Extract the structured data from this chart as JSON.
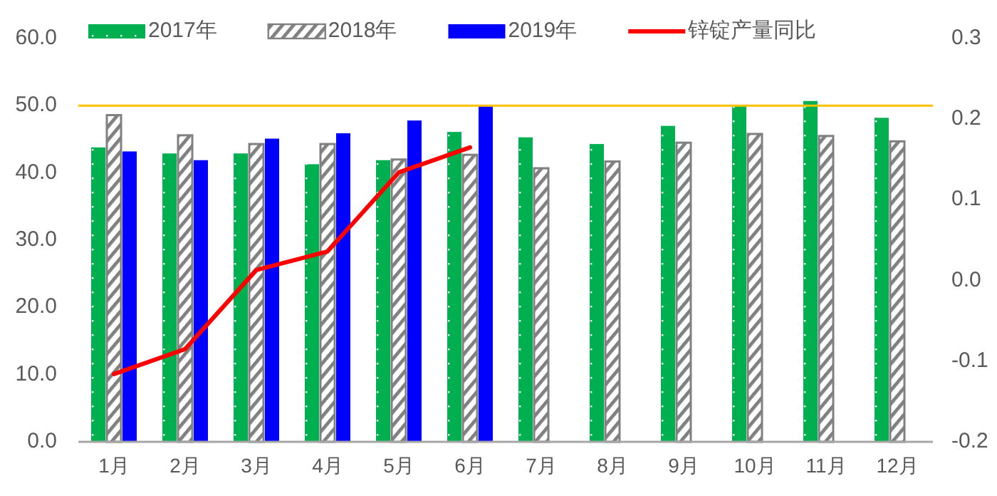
{
  "chart_data": {
    "type": "bar",
    "categories": [
      "1月",
      "2月",
      "3月",
      "4月",
      "5月",
      "6月",
      "7月",
      "8月",
      "9月",
      "10月",
      "11月",
      "12月"
    ],
    "series": [
      {
        "name": "2017年",
        "color": "#00b050",
        "values": [
          43.8,
          42.9,
          42.9,
          41.3,
          41.9,
          46.1,
          45.3,
          44.3,
          47.0,
          50.0,
          50.7,
          48.2
        ]
      },
      {
        "name": "2018年",
        "color": "#808080",
        "values": [
          48.6,
          45.6,
          44.3,
          44.3,
          42.0,
          42.7,
          40.7,
          41.7,
          44.5,
          45.8,
          45.5,
          44.7
        ]
      },
      {
        "name": "2019年",
        "color": "#0000ff",
        "values": [
          43.2,
          41.9,
          45.1,
          45.9,
          47.8,
          49.9,
          null,
          null,
          null,
          null,
          null,
          null
        ]
      },
      {
        "name": "锌锭产量同比",
        "type": "line",
        "axis": "y2",
        "color": "#ff0000",
        "values": [
          -0.116,
          -0.085,
          0.013,
          0.036,
          0.134,
          0.165,
          null,
          null,
          null,
          null,
          null,
          null
        ]
      }
    ],
    "ylim": [
      0,
      60
    ],
    "yticks": [
      {
        "value": 0,
        "label": "0.0"
      },
      {
        "value": 10,
        "label": "10.0"
      },
      {
        "value": 20,
        "label": "20.0"
      },
      {
        "value": 30,
        "label": "30.0"
      },
      {
        "value": 40,
        "label": "40.0"
      },
      {
        "value": 50,
        "label": "50.0"
      },
      {
        "value": 60,
        "label": "60.0"
      }
    ],
    "y2lim": [
      -0.2,
      0.3
    ],
    "y2ticks": [
      -0.2,
      -0.1,
      {
        "value": 0,
        "label": "0.0"
      },
      0.1,
      0.2,
      0.3
    ],
    "ref_lines": [
      {
        "axis": "y",
        "value": 50,
        "color": "#ffc000"
      }
    ],
    "legend": "top",
    "grid": false,
    "marker": "none"
  }
}
